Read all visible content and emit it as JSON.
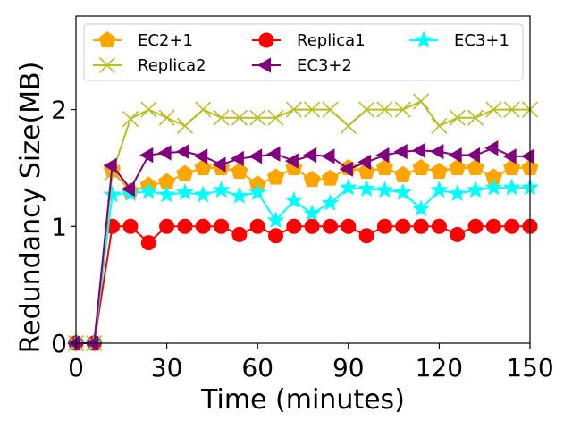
{
  "chart_data": {
    "type": "line",
    "title": "",
    "xlabel": "Time (minutes)",
    "ylabel": "Redundancy Size(MB)",
    "xlim": [
      0,
      150
    ],
    "ylim": [
      0,
      2.8
    ],
    "xticks": [
      0,
      30,
      60,
      90,
      120,
      150
    ],
    "yticks": [
      0,
      1,
      2
    ],
    "legend_position": "top",
    "x": [
      0,
      6,
      12,
      18,
      24,
      30,
      36,
      42,
      48,
      54,
      60,
      66,
      72,
      78,
      84,
      90,
      96,
      102,
      108,
      114,
      120,
      126,
      132,
      138,
      144,
      150
    ],
    "series": [
      {
        "name": "EC2+1",
        "color": "#ffa500",
        "marker": "pentagon",
        "values": [
          0,
          0,
          1.48,
          1.3,
          1.35,
          1.38,
          1.45,
          1.5,
          1.5,
          1.47,
          1.36,
          1.42,
          1.5,
          1.4,
          1.41,
          1.5,
          1.47,
          1.5,
          1.44,
          1.5,
          1.47,
          1.5,
          1.5,
          1.42,
          1.5,
          1.5
        ]
      },
      {
        "name": "Replica1",
        "color": "#ff0000",
        "marker": "circle",
        "values": [
          0,
          0,
          1.0,
          1.0,
          0.86,
          1.0,
          1.0,
          1.0,
          1.0,
          0.93,
          1.0,
          0.92,
          1.0,
          1.0,
          1.0,
          1.0,
          0.92,
          1.0,
          1.0,
          1.0,
          1.0,
          0.93,
          1.0,
          1.0,
          1.0,
          1.0
        ]
      },
      {
        "name": "EC3+1",
        "color": "#00ffff",
        "marker": "star",
        "values": [
          0,
          0,
          1.27,
          1.28,
          1.3,
          1.27,
          1.29,
          1.27,
          1.31,
          1.26,
          1.29,
          1.05,
          1.22,
          1.11,
          1.2,
          1.33,
          1.32,
          1.31,
          1.29,
          1.15,
          1.31,
          1.28,
          1.31,
          1.33,
          1.33,
          1.33
        ]
      },
      {
        "name": "Replica2",
        "color": "#bcbd22",
        "marker": "x",
        "values": [
          0,
          0,
          1.46,
          1.92,
          2.0,
          1.93,
          1.86,
          2.0,
          1.93,
          1.93,
          1.93,
          1.93,
          2.0,
          2.0,
          2.0,
          1.86,
          2.0,
          2.0,
          2.0,
          2.07,
          1.86,
          1.93,
          1.93,
          2.0,
          2.0,
          2.0
        ]
      },
      {
        "name": "EC3+2",
        "color": "#800080",
        "marker": "triangle-left",
        "values": [
          0,
          0,
          1.52,
          1.32,
          1.61,
          1.63,
          1.64,
          1.6,
          1.53,
          1.58,
          1.6,
          1.62,
          1.56,
          1.61,
          1.6,
          1.49,
          1.55,
          1.61,
          1.64,
          1.65,
          1.64,
          1.61,
          1.61,
          1.67,
          1.6,
          1.6
        ]
      }
    ]
  }
}
